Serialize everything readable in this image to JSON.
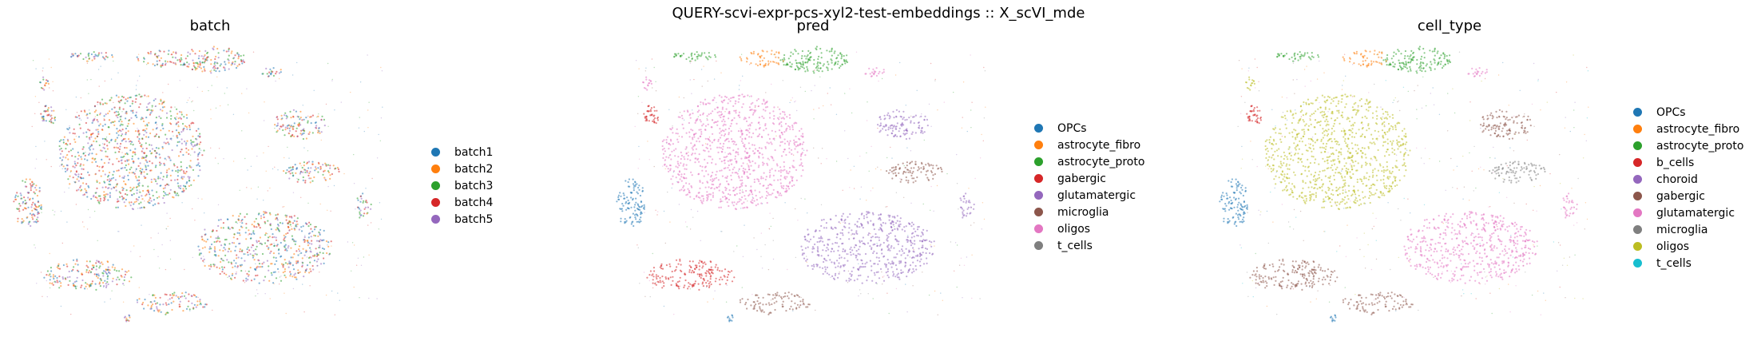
{
  "figure": {
    "suptitle": "QUERY-scvi-expr-pcs-xyl2-test-embeddings :: X_scVI_mde"
  },
  "chart_data": [
    {
      "type": "scatter",
      "title": "batch",
      "xlabel": "",
      "ylabel": "",
      "axis": "off",
      "grid": false,
      "legend": "right",
      "coloring": "mixed",
      "categories": [
        "batch1",
        "batch2",
        "batch3",
        "batch4",
        "batch5"
      ],
      "colors": [
        "#1f77b4",
        "#ff7f0e",
        "#2ca02c",
        "#d62728",
        "#9467bd"
      ]
    },
    {
      "type": "scatter",
      "title": "pred",
      "xlabel": "",
      "ylabel": "",
      "axis": "off",
      "grid": false,
      "legend": "right",
      "coloring": "by_cluster",
      "categories": [
        "OPCs",
        "astrocyte_fibro",
        "astrocyte_proto",
        "gabergic",
        "glutamatergic",
        "microglia",
        "oligos",
        "t_cells"
      ],
      "colors": [
        "#1f77b4",
        "#ff7f0e",
        "#2ca02c",
        "#d62728",
        "#9467bd",
        "#8c564b",
        "#e377c2",
        "#7f7f7f"
      ]
    },
    {
      "type": "scatter",
      "title": "cell_type",
      "xlabel": "",
      "ylabel": "",
      "axis": "off",
      "grid": false,
      "legend": "right",
      "coloring": "by_cluster",
      "categories": [
        "OPCs",
        "astrocyte_fibro",
        "astrocyte_proto",
        "b_cells",
        "choroid",
        "gabergic",
        "glutamatergic",
        "microglia",
        "oligos",
        "t_cells"
      ],
      "colors": [
        "#1f77b4",
        "#ff7f0e",
        "#2ca02c",
        "#d62728",
        "#9467bd",
        "#8c564b",
        "#e377c2",
        "#7f7f7f",
        "#bcbd22",
        "#17becf"
      ]
    }
  ]
}
